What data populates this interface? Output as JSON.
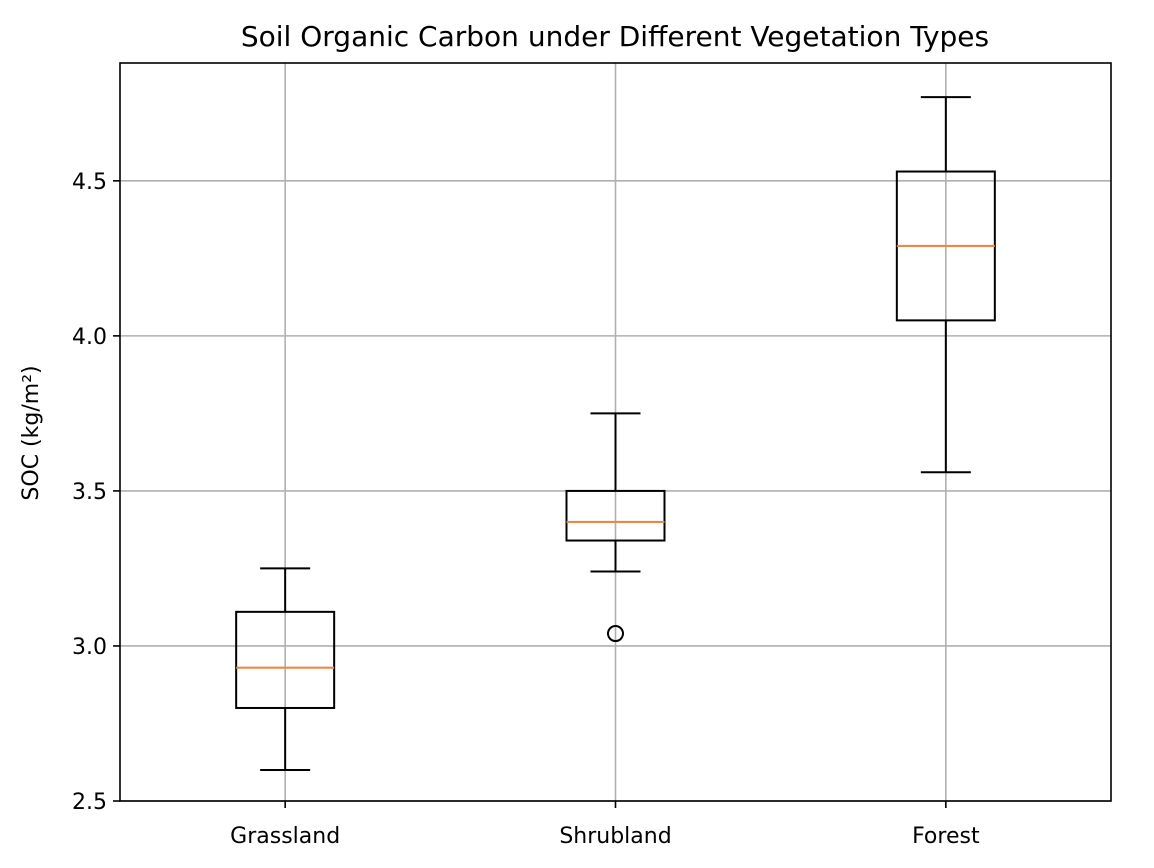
{
  "chart_data": {
    "type": "boxplot",
    "title": "Soil Organic Carbon under Different Vegetation Types",
    "xlabel": "",
    "ylabel": "SOC (kg/m²)",
    "categories": [
      "Grassland",
      "Shrubland",
      "Forest"
    ],
    "ylim": [
      2.5,
      4.88
    ],
    "yticks": [
      2.5,
      3.0,
      3.5,
      4.0,
      4.5
    ],
    "ytick_labels": [
      "2.5",
      "3.0",
      "3.5",
      "4.0",
      "4.5"
    ],
    "grid": true,
    "boxes": [
      {
        "category": "Grassland",
        "whisker_low": 2.6,
        "q1": 2.8,
        "median": 2.93,
        "q3": 3.11,
        "whisker_high": 3.25,
        "outliers": []
      },
      {
        "category": "Shrubland",
        "whisker_low": 3.24,
        "q1": 3.34,
        "median": 3.4,
        "q3": 3.5,
        "whisker_high": 3.75,
        "outliers": [
          3.04
        ]
      },
      {
        "category": "Forest",
        "whisker_low": 3.56,
        "q1": 4.05,
        "median": 4.29,
        "q3": 4.53,
        "whisker_high": 4.77,
        "outliers": []
      }
    ],
    "colors": {
      "box": "#000000",
      "median": "#e8894a",
      "grid": "#b0b0b0"
    }
  }
}
